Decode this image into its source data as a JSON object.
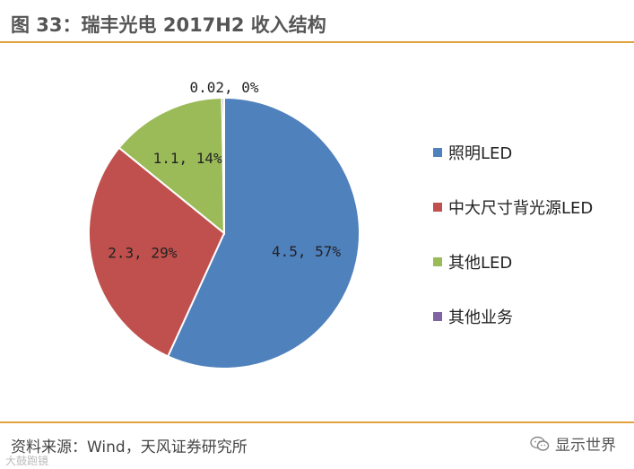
{
  "figure": {
    "title": "图 33：瑞丰光电 2017H2 收入结构",
    "source": "资料来源：Wind，天风证券研究所",
    "watermark_text": "显示世界",
    "watermark_icon": "wechat-icon",
    "bottom_watermark": "大鼓跑镜"
  },
  "colors": {
    "rule": "#e0a33c"
  },
  "chart_data": {
    "type": "pie",
    "title": "",
    "legend_position": "right",
    "slices": [
      {
        "name": "照明LED",
        "value": 4.5,
        "percent": "57%",
        "label": "4.5, 57%",
        "color": "#4f81bd"
      },
      {
        "name": "中大尺寸背光源LED",
        "value": 2.3,
        "percent": "29%",
        "label": "2.3, 29%",
        "color": "#c0504d"
      },
      {
        "name": "其他LED",
        "value": 1.1,
        "percent": "14%",
        "label": "1.1, 14%",
        "color": "#9bbb59"
      },
      {
        "name": "其他业务",
        "value": 0.02,
        "percent": "0%",
        "label": "0.02, 0%",
        "color": "#8064a2"
      }
    ]
  }
}
